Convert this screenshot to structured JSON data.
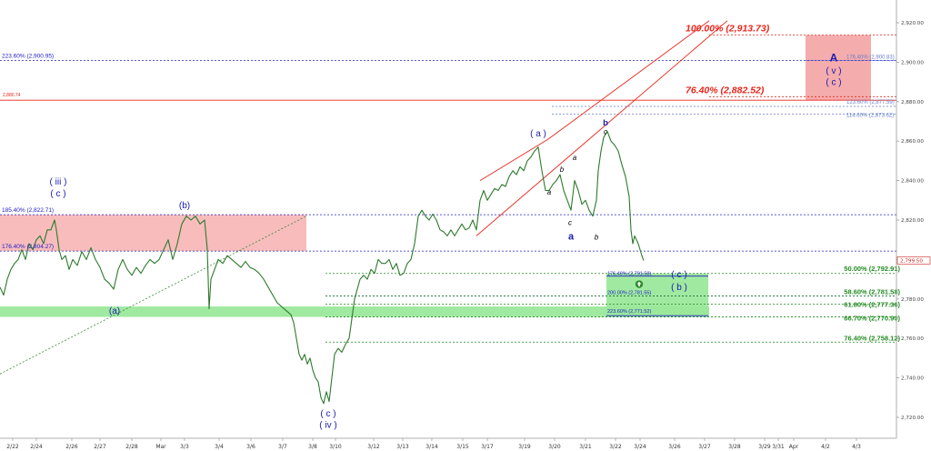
{
  "chart_data": {
    "type": "line",
    "instrument_style": "candlestick-like price chart with Elliott wave annotations",
    "x_ticks": [
      "2/22",
      "2/24",
      "2/26",
      "2/27",
      "2/28",
      "Mar",
      "3/3",
      "3/4",
      "3/6",
      "3/7",
      "3/8",
      "3/10",
      "3/12",
      "3/13",
      "3/14",
      "3/15",
      "3/17",
      "3/19",
      "3/20",
      "3/21",
      "3/22",
      "3/24",
      "3/26",
      "3/27",
      "3/28",
      "3/29",
      "3/31",
      "Apr",
      "4/2",
      "4/3"
    ],
    "y_ticks": [
      2720,
      2740,
      2760,
      2780,
      2800,
      2820,
      2840,
      2860,
      2880,
      2900,
      2920
    ],
    "y_tick_labels": [
      "2,720.00",
      "2,740.00",
      "2,760.00",
      "2,780.00",
      "2,800.00",
      "2,820.00",
      "2,840.00",
      "2,860.00",
      "2,880.00",
      "2,900.00",
      "2,920.00"
    ],
    "ylim": [
      2710,
      2924
    ],
    "current_price": {
      "value": 2799.5,
      "label": "2,799.50"
    },
    "price_path": [
      [
        0,
        2786
      ],
      [
        4,
        2782
      ],
      [
        8,
        2790
      ],
      [
        12,
        2795
      ],
      [
        16,
        2798
      ],
      [
        20,
        2800
      ],
      [
        24,
        2805
      ],
      [
        28,
        2800
      ],
      [
        32,
        2808
      ],
      [
        36,
        2805
      ],
      [
        40,
        2810
      ],
      [
        44,
        2812
      ],
      [
        48,
        2808
      ],
      [
        52,
        2815
      ],
      [
        56,
        2815
      ],
      [
        60,
        2820
      ],
      [
        62,
        2815
      ],
      [
        65,
        2805
      ],
      [
        68,
        2800
      ],
      [
        72,
        2802
      ],
      [
        76,
        2795
      ],
      [
        80,
        2800
      ],
      [
        85,
        2797
      ],
      [
        90,
        2804
      ],
      [
        95,
        2800
      ],
      [
        100,
        2806
      ],
      [
        105,
        2800
      ],
      [
        110,
        2796
      ],
      [
        115,
        2790
      ],
      [
        120,
        2788
      ],
      [
        125,
        2785
      ],
      [
        130,
        2795
      ],
      [
        135,
        2800
      ],
      [
        140,
        2795
      ],
      [
        145,
        2792
      ],
      [
        150,
        2796
      ],
      [
        155,
        2793
      ],
      [
        160,
        2797
      ],
      [
        165,
        2800
      ],
      [
        170,
        2798
      ],
      [
        175,
        2800
      ],
      [
        180,
        2805
      ],
      [
        185,
        2810
      ],
      [
        190,
        2800
      ],
      [
        195,
        2808
      ],
      [
        200,
        2818
      ],
      [
        205,
        2822
      ],
      [
        210,
        2820
      ],
      [
        215,
        2822
      ],
      [
        220,
        2818
      ],
      [
        225,
        2820
      ],
      [
        228,
        2805
      ],
      [
        230,
        2775
      ],
      [
        232,
        2790
      ],
      [
        236,
        2795
      ],
      [
        240,
        2800
      ],
      [
        245,
        2798
      ],
      [
        250,
        2802
      ],
      [
        255,
        2800
      ],
      [
        260,
        2798
      ],
      [
        265,
        2796
      ],
      [
        270,
        2799
      ],
      [
        275,
        2796
      ],
      [
        280,
        2795
      ],
      [
        285,
        2793
      ],
      [
        290,
        2790
      ],
      [
        295,
        2786
      ],
      [
        300,
        2782
      ],
      [
        305,
        2778
      ],
      [
        310,
        2776
      ],
      [
        315,
        2774
      ],
      [
        320,
        2772
      ],
      [
        323,
        2768
      ],
      [
        326,
        2760
      ],
      [
        329,
        2752
      ],
      [
        332,
        2749
      ],
      [
        335,
        2752
      ],
      [
        338,
        2747
      ],
      [
        341,
        2750
      ],
      [
        344,
        2744
      ],
      [
        347,
        2740
      ],
      [
        350,
        2738
      ],
      [
        353,
        2730
      ],
      [
        356,
        2727
      ],
      [
        359,
        2733
      ],
      [
        362,
        2728
      ],
      [
        365,
        2740
      ],
      [
        368,
        2752
      ],
      [
        372,
        2755
      ],
      [
        376,
        2753
      ],
      [
        380,
        2757
      ],
      [
        384,
        2760
      ],
      [
        387,
        2770
      ],
      [
        390,
        2780
      ],
      [
        393,
        2785
      ],
      [
        396,
        2790
      ],
      [
        400,
        2792
      ],
      [
        404,
        2790
      ],
      [
        408,
        2795
      ],
      [
        412,
        2793
      ],
      [
        416,
        2800
      ],
      [
        420,
        2798
      ],
      [
        424,
        2798
      ],
      [
        428,
        2800
      ],
      [
        432,
        2795
      ],
      [
        436,
        2798
      ],
      [
        440,
        2792
      ],
      [
        444,
        2793
      ],
      [
        448,
        2798
      ],
      [
        452,
        2800
      ],
      [
        456,
        2808
      ],
      [
        460,
        2822
      ],
      [
        464,
        2825
      ],
      [
        468,
        2822
      ],
      [
        472,
        2820
      ],
      [
        476,
        2823
      ],
      [
        480,
        2820
      ],
      [
        484,
        2815
      ],
      [
        488,
        2814
      ],
      [
        492,
        2812
      ],
      [
        496,
        2815
      ],
      [
        500,
        2812
      ],
      [
        504,
        2815
      ],
      [
        508,
        2818
      ],
      [
        512,
        2815
      ],
      [
        516,
        2816
      ],
      [
        520,
        2820
      ],
      [
        524,
        2815
      ],
      [
        528,
        2830
      ],
      [
        532,
        2835
      ],
      [
        536,
        2830
      ],
      [
        540,
        2833
      ],
      [
        544,
        2836
      ],
      [
        548,
        2835
      ],
      [
        552,
        2838
      ],
      [
        556,
        2837
      ],
      [
        560,
        2842
      ],
      [
        564,
        2845
      ],
      [
        568,
        2843
      ],
      [
        572,
        2847
      ],
      [
        576,
        2845
      ],
      [
        580,
        2850
      ],
      [
        584,
        2852
      ],
      [
        588,
        2855
      ],
      [
        592,
        2857
      ],
      [
        596,
        2845
      ],
      [
        600,
        2835
      ],
      [
        604,
        2835
      ],
      [
        608,
        2838
      ],
      [
        612,
        2840
      ],
      [
        616,
        2843
      ],
      [
        620,
        2835
      ],
      [
        624,
        2830
      ],
      [
        628,
        2825
      ],
      [
        632,
        2840
      ],
      [
        636,
        2835
      ],
      [
        640,
        2828
      ],
      [
        644,
        2830
      ],
      [
        648,
        2825
      ],
      [
        652,
        2822
      ],
      [
        656,
        2830
      ],
      [
        658,
        2845
      ],
      [
        661,
        2855
      ],
      [
        664,
        2862
      ],
      [
        668,
        2865
      ],
      [
        672,
        2860
      ],
      [
        676,
        2858
      ],
      [
        680,
        2855
      ],
      [
        684,
        2848
      ],
      [
        688,
        2842
      ],
      [
        692,
        2832
      ],
      [
        694,
        2815
      ],
      [
        696,
        2808
      ],
      [
        698,
        2812
      ],
      [
        700,
        2810
      ],
      [
        702,
        2808
      ],
      [
        704,
        2805
      ],
      [
        706,
        2802
      ],
      [
        708,
        2799.5
      ]
    ],
    "fib_levels": [
      {
        "label": "100.00% (2,913.73)",
        "value": 2913.73,
        "color": "#e8261b"
      },
      {
        "label": "223.60% (2,900.95)",
        "value": 2900.95,
        "color": "#2020c8"
      },
      {
        "label": "176.40% (2,900.83)",
        "value": 2900.83,
        "color": "#6a7fc8"
      },
      {
        "label": "76.40% (2,882.52)",
        "value": 2882.52,
        "color": "#e8261b"
      },
      {
        "label": "2,880.74",
        "value": 2880.74,
        "color": "#e8261b"
      },
      {
        "label": "123.60% (2,877.59)",
        "value": 2877.59,
        "color": "#6a7fc8"
      },
      {
        "label": "114.60% (2,873.62)",
        "value": 2873.62,
        "color": "#6a7fc8"
      },
      {
        "label": "185.40% (2,822.71)",
        "value": 2822.71,
        "color": "#2020c8"
      },
      {
        "label": "176.40% (2,804.27)",
        "value": 2804.27,
        "color": "#2020c8"
      },
      {
        "label": "50.00% (2,792.91)",
        "value": 2792.91,
        "color": "#228b22"
      },
      {
        "label": "176.40% (2,791.58)",
        "value": 2791.58,
        "color": "#2020c8"
      },
      {
        "label": "200.00% (2,781.55)",
        "value": 2781.55,
        "color": "#2020c8"
      },
      {
        "label": "58.60% (2,781.58)",
        "value": 2781.58,
        "color": "#228b22"
      },
      {
        "label": "61.80% (2,777.36)",
        "value": 2777.36,
        "color": "#228b22"
      },
      {
        "label": "223.60% (2,771.52)",
        "value": 2771.52,
        "color": "#2020c8"
      },
      {
        "label": "66.70% (2,770.90)",
        "value": 2770.9,
        "color": "#228b22"
      },
      {
        "label": "76.40% (2,758.12)",
        "value": 2758.12,
        "color": "#228b22"
      }
    ],
    "zones": [
      {
        "name": "upper-target-zone",
        "y_range": [
          2880.74,
          2913.73
        ],
        "color": "#f4a3a3"
      },
      {
        "name": "resistance-zone",
        "y_range": [
          2804.27,
          2822.71
        ],
        "color": "#f7b5b5"
      },
      {
        "name": "support-zone",
        "y_range": [
          2770.9,
          2776.2
        ],
        "color": "#9be89b"
      },
      {
        "name": "current-target-zone",
        "y_range": [
          2771.52,
          2792.91
        ],
        "color": "#9be89b"
      }
    ],
    "wave_labels": [
      {
        "text": "( iii )",
        "color": "#1a1ab0"
      },
      {
        "text": "( c )",
        "color": "#1a1ab0"
      },
      {
        "text": "(b)",
        "color": "#1a1ab0"
      },
      {
        "text": "(a)",
        "color": "#1a1ab0"
      },
      {
        "text": "( c )",
        "color": "#1a1ab0"
      },
      {
        "text": "( iv )",
        "color": "#1a1ab0"
      },
      {
        "text": "( a )",
        "color": "#1a1ab0"
      },
      {
        "text": "a",
        "color": "#000000"
      },
      {
        "text": "b",
        "color": "#000000"
      },
      {
        "text": "c",
        "color": "#000000"
      },
      {
        "text": "a",
        "color": "#1a1ab0"
      },
      {
        "text": "a",
        "color": "#000000"
      },
      {
        "text": "b",
        "color": "#000000"
      },
      {
        "text": "b",
        "color": "#1a1ab0"
      },
      {
        "text": "c",
        "color": "#000000"
      },
      {
        "text": "A",
        "color": "#1a1ab0"
      },
      {
        "text": "( v )",
        "color": "#1a1ab0"
      },
      {
        "text": "( c )",
        "color": "#1a1ab0"
      },
      {
        "text": "( c )",
        "color": "#1a1ab0"
      },
      {
        "text": "( b )",
        "color": "#1a1ab0"
      }
    ],
    "grid": false,
    "legend": "none"
  }
}
